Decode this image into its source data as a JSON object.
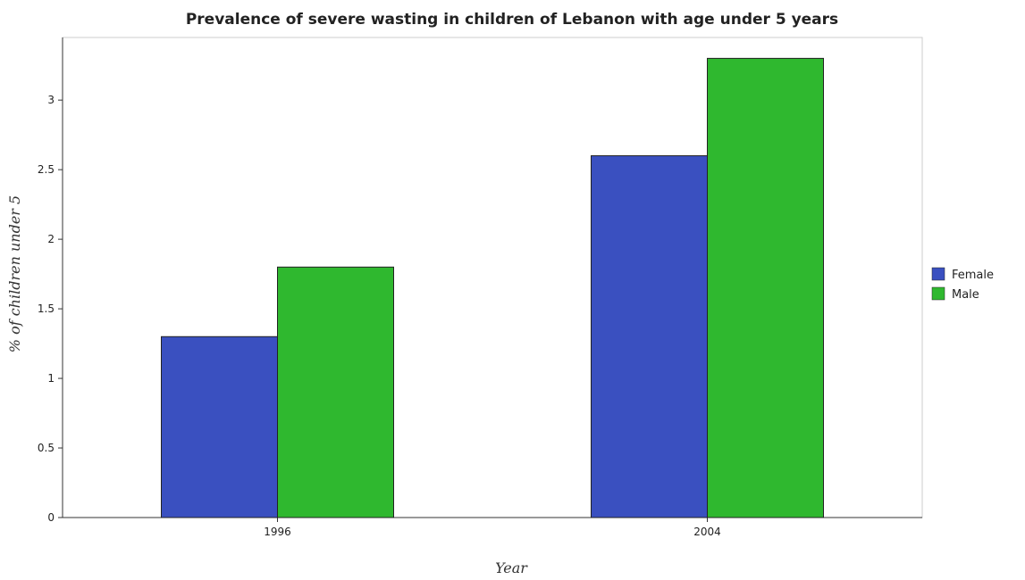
{
  "chart_data": {
    "type": "bar",
    "title": "Prevalence of severe wasting in children of Lebanon with age under 5 years",
    "xlabel": "Year",
    "ylabel": "% of children under 5",
    "categories": [
      "1996",
      "2004"
    ],
    "series": [
      {
        "name": "Female",
        "values": [
          1.3,
          2.6
        ],
        "color": "#3a50c0"
      },
      {
        "name": "Male",
        "values": [
          1.8,
          3.3
        ],
        "color": "#2fb82f"
      }
    ],
    "ylim": [
      0,
      3.45
    ],
    "yticks": [
      0,
      0.5,
      1,
      1.5,
      2,
      2.5,
      3
    ],
    "ytick_labels": [
      "0",
      "0.5",
      "1",
      "1.5",
      "2",
      "2.5",
      "3"
    ],
    "grid": false,
    "legend_position": "right"
  }
}
